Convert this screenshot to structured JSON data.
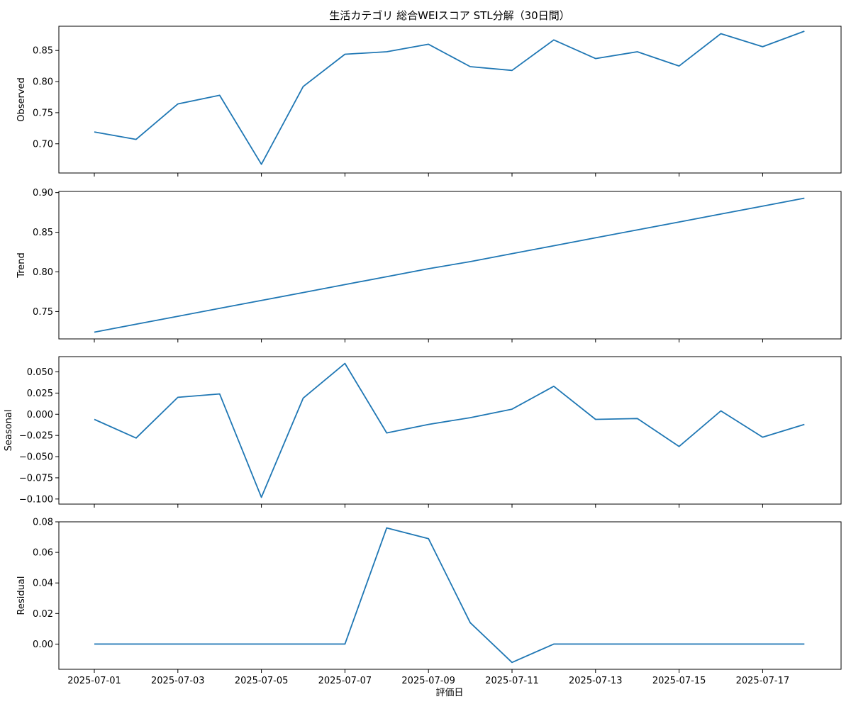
{
  "chart_data": {
    "type": "line",
    "title": "生活カテゴリ 総合WEIスコア STL分解（30日間）",
    "xlabel": "評価日",
    "x": [
      "2025-07-01",
      "2025-07-02",
      "2025-07-03",
      "2025-07-04",
      "2025-07-05",
      "2025-07-06",
      "2025-07-07",
      "2025-07-08",
      "2025-07-09",
      "2025-07-10",
      "2025-07-11",
      "2025-07-12",
      "2025-07-13",
      "2025-07-14",
      "2025-07-15",
      "2025-07-16",
      "2025-07-17",
      "2025-07-18"
    ],
    "x_tick_labels": [
      "2025-07-01",
      "2025-07-03",
      "2025-07-05",
      "2025-07-07",
      "2025-07-09",
      "2025-07-11",
      "2025-07-13",
      "2025-07-15",
      "2025-07-17"
    ],
    "line_color": "#1f77b4",
    "grid": false,
    "panels": [
      {
        "ylabel": "Observed",
        "values": [
          0.719,
          0.707,
          0.764,
          0.778,
          0.667,
          0.792,
          0.844,
          0.848,
          0.86,
          0.824,
          0.818,
          0.867,
          0.837,
          0.848,
          0.825,
          0.877,
          0.856,
          0.881
        ],
        "ylim": [
          0.653,
          0.889
        ],
        "ticks": [
          0.7,
          0.75,
          0.8,
          0.85
        ],
        "tick_labels": [
          "0.70",
          "0.75",
          "0.80",
          "0.85"
        ]
      },
      {
        "ylabel": "Trend",
        "values": [
          0.724,
          0.734,
          0.744,
          0.754,
          0.764,
          0.774,
          0.784,
          0.794,
          0.804,
          0.813,
          0.823,
          0.833,
          0.843,
          0.853,
          0.863,
          0.873,
          0.883,
          0.893
        ],
        "ylim": [
          0.7155,
          0.9015
        ],
        "ticks": [
          0.75,
          0.8,
          0.85,
          0.9
        ],
        "tick_labels": [
          "0.75",
          "0.80",
          "0.85",
          "0.90"
        ]
      },
      {
        "ylabel": "Seasonal",
        "values": [
          -0.006,
          -0.028,
          0.02,
          0.024,
          -0.098,
          0.019,
          0.06,
          -0.022,
          -0.012,
          -0.004,
          0.006,
          0.033,
          -0.006,
          -0.005,
          -0.038,
          0.004,
          -0.027,
          -0.012
        ],
        "ylim": [
          -0.106,
          0.068
        ],
        "ticks": [
          -0.1,
          -0.075,
          -0.05,
          -0.025,
          0.0,
          0.025,
          0.05
        ],
        "tick_labels": [
          "−0.100",
          "−0.075",
          "−0.050",
          "−0.025",
          "0.000",
          "0.025",
          "0.050"
        ]
      },
      {
        "ylabel": "Residual",
        "values": [
          0,
          0,
          0,
          0,
          0,
          0,
          0,
          0.076,
          0.069,
          0.014,
          -0.012,
          0,
          0,
          0,
          0,
          0,
          0,
          0
        ],
        "ylim": [
          -0.0165,
          0.08
        ],
        "ticks": [
          0.0,
          0.02,
          0.04,
          0.06,
          0.08
        ],
        "tick_labels": [
          "0.00",
          "0.02",
          "0.04",
          "0.06",
          "0.08"
        ]
      }
    ]
  }
}
